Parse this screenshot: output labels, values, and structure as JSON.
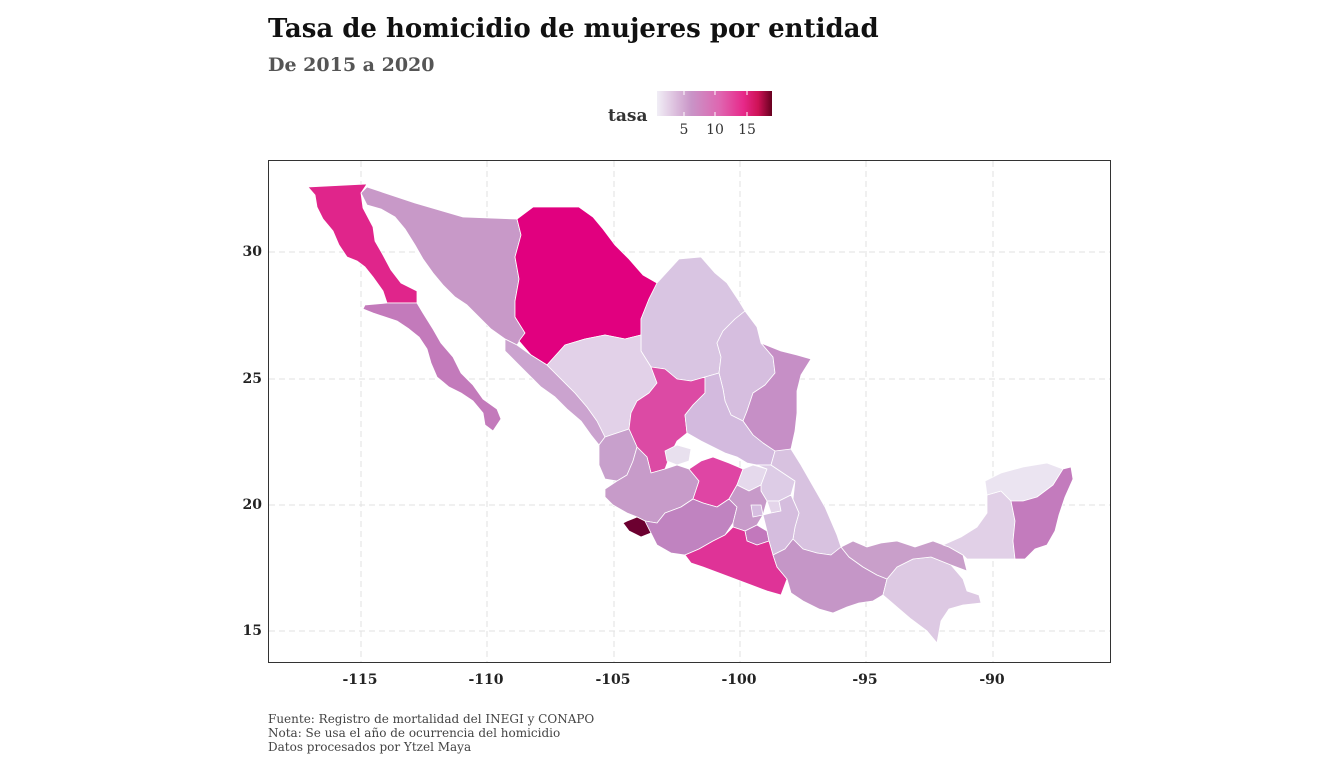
{
  "title": "Tasa de homicidio de mujeres por entidad",
  "subtitle": "De 2015 a 2020",
  "legend": {
    "title": "tasa",
    "ticks": [
      "5",
      "10",
      "15"
    ],
    "colors": [
      "#ece7f2",
      "#c994c7",
      "#df65b0",
      "#e7298a",
      "#ce1256",
      "#67001f"
    ]
  },
  "axes": {
    "x_ticks": [
      "-115",
      "-110",
      "-105",
      "-100",
      "-95",
      "-90"
    ],
    "y_ticks": [
      "30",
      "25",
      "20",
      "15"
    ]
  },
  "caption": [
    "Fuente: Registro de mortalidad del INEGI y CONAPO",
    "Nota: Se usa el año de ocurrencia del homicidio",
    "Datos procesados por Ytzel Maya"
  ],
  "regions": [
    {
      "name": "baja-california",
      "color": "#e0258b"
    },
    {
      "name": "baja-california-sur",
      "color": "#c37abb"
    },
    {
      "name": "sonora",
      "color": "#c899c8"
    },
    {
      "name": "chihuahua",
      "color": "#e1007f"
    },
    {
      "name": "coahuila",
      "color": "#d9c5e2"
    },
    {
      "name": "nuevo-leon",
      "color": "#d6bedf"
    },
    {
      "name": "tamaulipas",
      "color": "#c68fc6"
    },
    {
      "name": "sinaloa",
      "color": "#cba3cf"
    },
    {
      "name": "durango",
      "color": "#e2d1e8"
    },
    {
      "name": "zacatecas",
      "color": "#dc4aa4"
    },
    {
      "name": "san-luis-potosi",
      "color": "#d3bade"
    },
    {
      "name": "aguascalientes",
      "color": "#e8e0ee"
    },
    {
      "name": "nayarit",
      "color": "#c8a0cc"
    },
    {
      "name": "jalisco",
      "color": "#c79bc9"
    },
    {
      "name": "guanajuato",
      "color": "#df45a4"
    },
    {
      "name": "queretaro",
      "color": "#e5d9ec"
    },
    {
      "name": "hidalgo",
      "color": "#ddcce6"
    },
    {
      "name": "veracruz",
      "color": "#d8c2e0"
    },
    {
      "name": "colima",
      "color": "#6c0030"
    },
    {
      "name": "michoacan",
      "color": "#c083c0"
    },
    {
      "name": "estado-de-mexico",
      "color": "#c79ac9"
    },
    {
      "name": "cdmx",
      "color": "#d6bde0"
    },
    {
      "name": "morelos",
      "color": "#c278bc"
    },
    {
      "name": "tlaxcala",
      "color": "#e4d5ea"
    },
    {
      "name": "puebla",
      "color": "#d5bdde"
    },
    {
      "name": "guerrero",
      "color": "#df3397"
    },
    {
      "name": "oaxaca",
      "color": "#c596c7"
    },
    {
      "name": "chiapas",
      "color": "#ddc9e3"
    },
    {
      "name": "tabasco",
      "color": "#c99fca"
    },
    {
      "name": "campeche",
      "color": "#e1d0e7"
    },
    {
      "name": "yucatan",
      "color": "#ebe4f1"
    },
    {
      "name": "quintana-roo",
      "color": "#c37bbd"
    }
  ]
}
